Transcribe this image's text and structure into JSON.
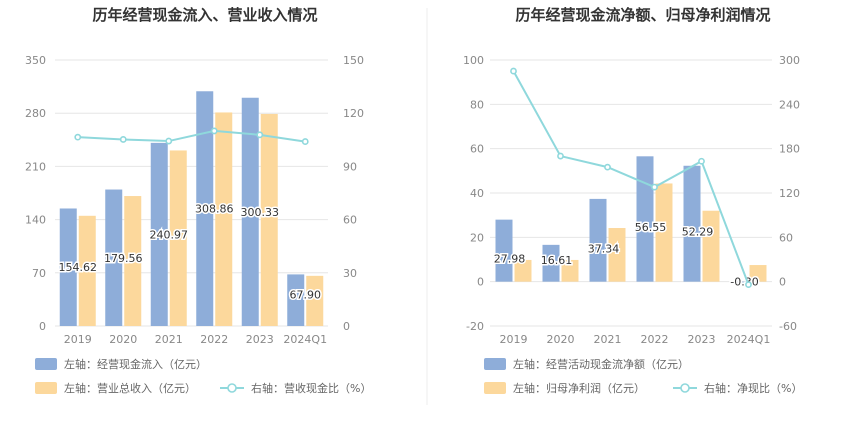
{
  "chart_data": [
    {
      "type": "bar",
      "title": "历年经营现金流入、营业收入情况",
      "categories": [
        "2019",
        "2020",
        "2021",
        "2022",
        "2023",
        "2024Q1"
      ],
      "left_axis": {
        "ylim": [
          0,
          350
        ],
        "ticks": [
          "0",
          "70",
          "140",
          "210",
          "280",
          "350"
        ]
      },
      "right_axis": {
        "ylim": [
          0,
          150
        ],
        "ticks": [
          "0",
          "30",
          "60",
          "90",
          "120",
          "150"
        ]
      },
      "series": [
        {
          "name": "左轴：经营现金流入（亿元）",
          "axis": "left",
          "kind": "bar",
          "color": "#8eadd9",
          "values": [
            154.62,
            179.56,
            240.97,
            308.86,
            300.33,
            67.9
          ],
          "labels": [
            "154.62",
            "179.56",
            "240.97",
            "308.86",
            "300.33",
            "67.90"
          ]
        },
        {
          "name": "左轴：营业总收入（亿元）",
          "axis": "left",
          "kind": "bar",
          "color": "#fcd89c",
          "values": [
            145,
            171,
            231,
            281,
            279,
            66
          ]
        },
        {
          "name": "右轴：营收现金比（%）",
          "axis": "right",
          "kind": "line",
          "color": "#8fd8dc",
          "values": [
            106.5,
            105.2,
            104.3,
            110.0,
            107.8,
            104.0
          ]
        }
      ]
    },
    {
      "type": "bar",
      "title": "历年经营现金流净额、归母净利润情况",
      "categories": [
        "2019",
        "2020",
        "2021",
        "2022",
        "2023",
        "2024Q1"
      ],
      "left_axis": {
        "ylim": [
          -20,
          100
        ],
        "ticks": [
          "-20",
          "0",
          "20",
          "40",
          "60",
          "80",
          "100"
        ]
      },
      "right_axis": {
        "ylim": [
          -60,
          300
        ],
        "ticks": [
          "-60",
          "0",
          "60",
          "120",
          "180",
          "240",
          "300"
        ]
      },
      "series": [
        {
          "name": "左轴：经营活动现金流净额（亿元）",
          "axis": "left",
          "kind": "bar",
          "color": "#8eadd9",
          "values": [
            27.98,
            16.61,
            37.34,
            56.55,
            52.29,
            -0.3
          ],
          "labels": [
            "27.98",
            "16.61",
            "37.34",
            "56.55",
            "52.29",
            "-0.30"
          ]
        },
        {
          "name": "左轴：归母净利润（亿元）",
          "axis": "left",
          "kind": "bar",
          "color": "#fcd89c",
          "values": [
            9.8,
            9.8,
            24.2,
            44.3,
            32.0,
            7.5
          ]
        },
        {
          "name": "右轴：净现比（%）",
          "axis": "right",
          "kind": "line",
          "color": "#8fd8dc",
          "values": [
            285,
            170,
            155,
            128,
            163,
            -4
          ]
        }
      ]
    }
  ]
}
